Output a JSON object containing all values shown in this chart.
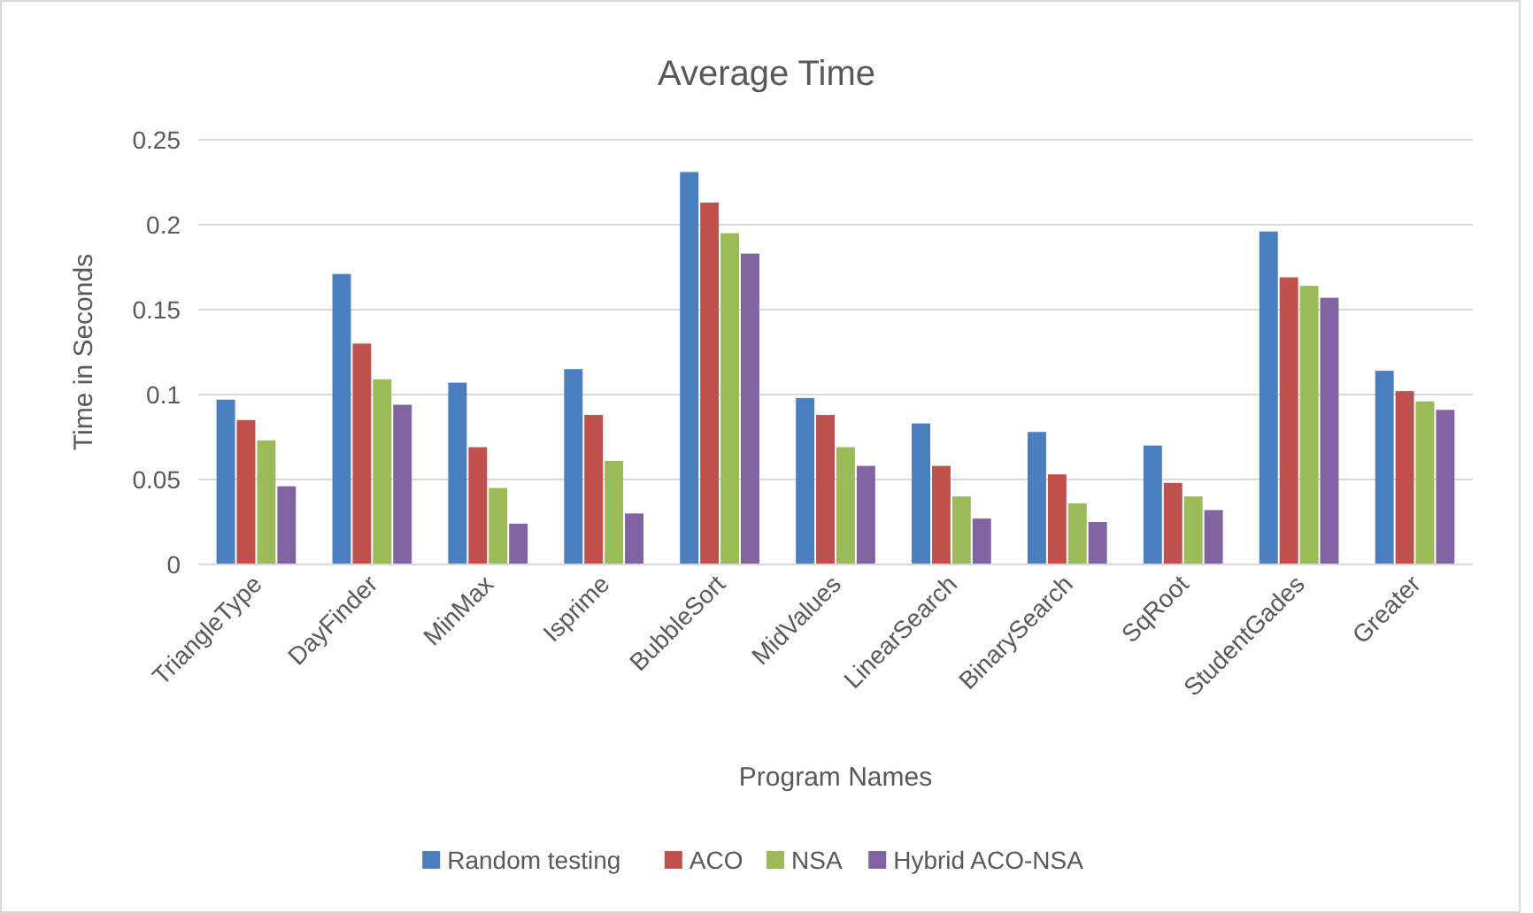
{
  "chart_data": {
    "type": "bar",
    "title": "Average Time",
    "xlabel": "Program Names",
    "ylabel": "Time in  Seconds",
    "categories": [
      "TriangleType",
      "DayFinder",
      "MinMax",
      "Isprime",
      "BubbleSort",
      "MidValues",
      "LinearSearch",
      "BinarySearch",
      "SqRoot",
      "StudentGades",
      "Greater"
    ],
    "series": [
      {
        "name": "Random testing",
        "color": "#4a7ebf",
        "values": [
          0.097,
          0.171,
          0.107,
          0.115,
          0.231,
          0.098,
          0.083,
          0.078,
          0.07,
          0.196,
          0.114
        ]
      },
      {
        "name": "ACO",
        "color": "#c0504d",
        "values": [
          0.085,
          0.13,
          0.069,
          0.088,
          0.213,
          0.088,
          0.058,
          0.053,
          0.048,
          0.169,
          0.102
        ]
      },
      {
        "name": "NSA",
        "color": "#9bbb59",
        "values": [
          0.073,
          0.109,
          0.045,
          0.061,
          0.195,
          0.069,
          0.04,
          0.036,
          0.04,
          0.164,
          0.096
        ]
      },
      {
        "name": "Hybrid ACO-NSA",
        "color": "#8064a2",
        "values": [
          0.046,
          0.094,
          0.024,
          0.03,
          0.183,
          0.058,
          0.027,
          0.025,
          0.032,
          0.157,
          0.091
        ]
      }
    ],
    "ylim": [
      0,
      0.25
    ],
    "yticks": [
      0,
      0.05,
      0.1,
      0.15,
      0.2,
      0.25
    ],
    "grid": "y",
    "legend": "bottom"
  }
}
